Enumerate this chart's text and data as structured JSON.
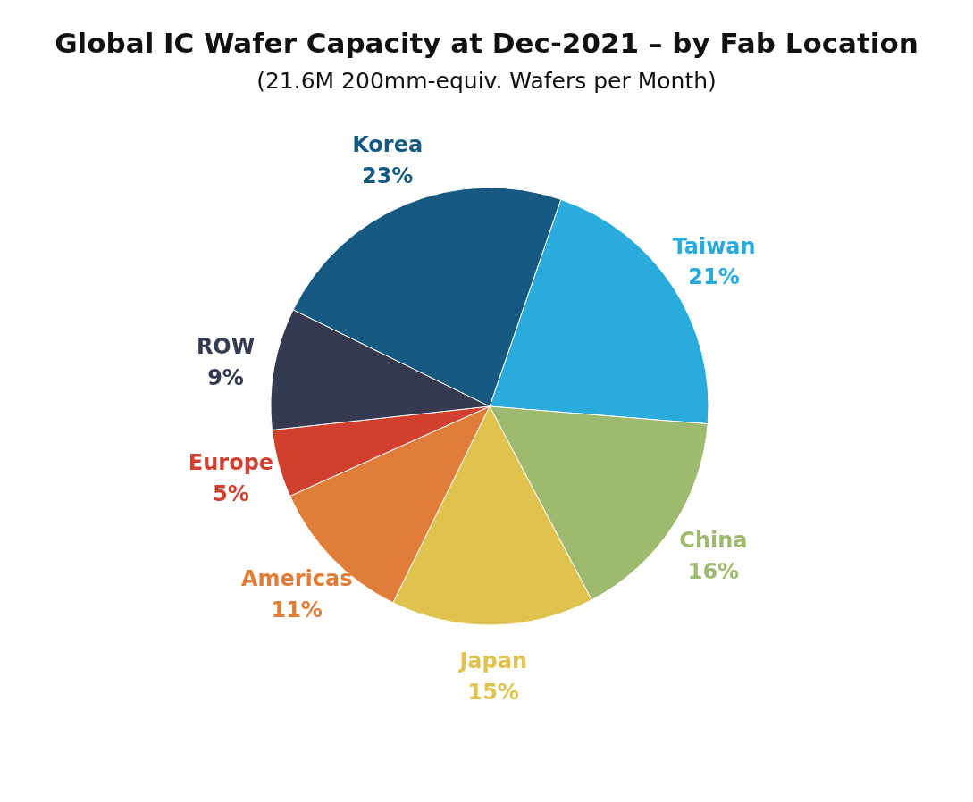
{
  "chart_data": {
    "type": "pie",
    "title": "Global IC Wafer Capacity at Dec-2021 – by Fab Location",
    "subtitle": "(21.6M 200mm-equiv. Wafers per Month)",
    "categories": [
      "Taiwan",
      "China",
      "Japan",
      "Americas",
      "Europe",
      "ROW",
      "Korea"
    ],
    "values": [
      21,
      16,
      15,
      11,
      5,
      9,
      23
    ],
    "value_labels": [
      "21%",
      "16%",
      "15%",
      "11%",
      "5%",
      "9%",
      "23%"
    ],
    "colors": [
      "#29acdc",
      "#9dba6e",
      "#e0c24e",
      "#e07d38",
      "#d13f2e",
      "#353a50",
      "#165a82"
    ]
  }
}
